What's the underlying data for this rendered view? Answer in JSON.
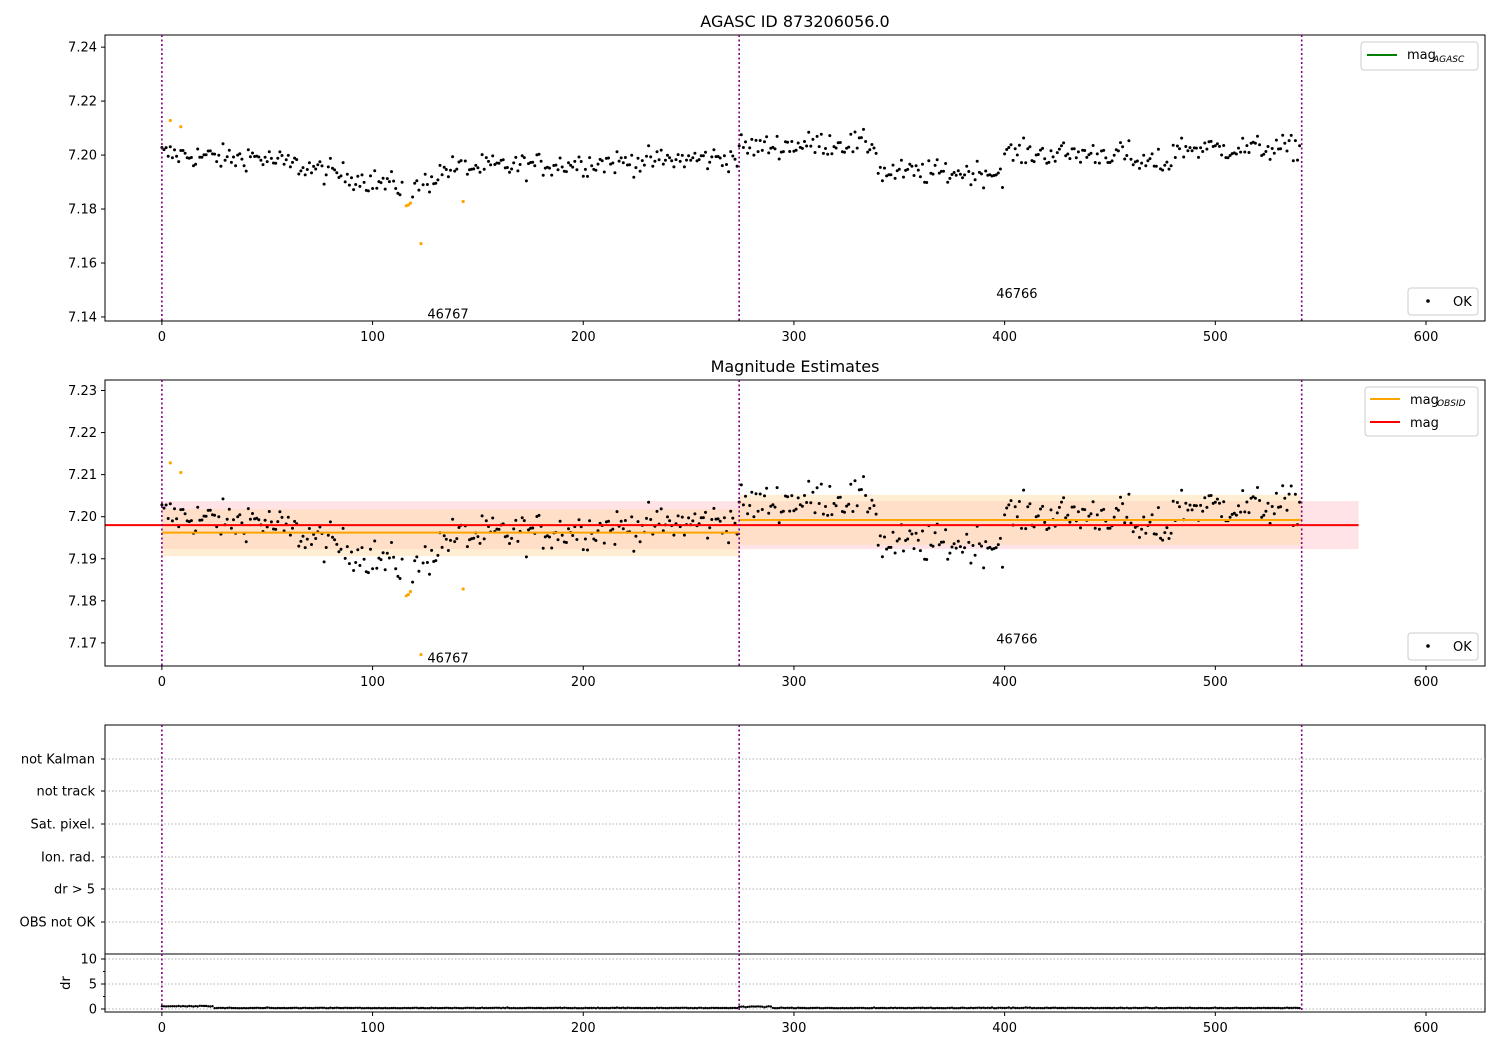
{
  "chart_data": [
    {
      "type": "scatter",
      "title": "AGASC ID 873206056.0",
      "xlim": [
        -27,
        628
      ],
      "ylim": [
        7.1385,
        7.2445
      ],
      "xticks": [
        0,
        100,
        200,
        300,
        400,
        500,
        600
      ],
      "yticks": [
        7.14,
        7.16,
        7.18,
        7.2,
        7.22,
        7.24
      ],
      "vlines": [
        0,
        274,
        541
      ],
      "legend_upper": {
        "position": "top-right",
        "entries": [
          {
            "label": "mag",
            "sub": "AGASC",
            "color": "#008000"
          }
        ]
      },
      "legend_lower": {
        "position": "bottom-right",
        "entries": [
          {
            "label": "OK",
            "marker": "dot"
          }
        ]
      },
      "annotations": [
        {
          "text": "46767",
          "x": 126,
          "y": 7.141
        },
        {
          "text": "46766",
          "x": 396,
          "y": 7.1485
        }
      ],
      "series": [
        {
          "name": "OK",
          "color": "#000000"
        },
        {
          "color": "#FFA500"
        }
      ]
    },
    {
      "type": "scatter",
      "title": "Magnitude Estimates",
      "xlim": [
        -27,
        628
      ],
      "ylim": [
        7.1645,
        7.2325
      ],
      "xticks": [
        0,
        100,
        200,
        300,
        400,
        500,
        600
      ],
      "yticks": [
        7.17,
        7.18,
        7.19,
        7.2,
        7.21,
        7.22,
        7.23
      ],
      "vlines": [
        0,
        274,
        541
      ],
      "legend_upper": {
        "position": "top-right",
        "entries": [
          {
            "label": "mag",
            "sub": "OBSID",
            "color": "#FFA500"
          },
          {
            "label": "mag",
            "color": "#FF0000"
          }
        ]
      },
      "legend_lower": {
        "position": "bottom-right",
        "entries": [
          {
            "label": "OK",
            "marker": "dot"
          }
        ]
      },
      "annotations": [
        {
          "text": "46767",
          "x": 126,
          "y": 7.1663
        },
        {
          "text": "46766",
          "x": 396,
          "y": 7.1708
        }
      ],
      "bands": [
        {
          "x0": 0,
          "x1": 568,
          "y0": 7.1923,
          "y1": 7.2037,
          "color": "#FFC8CD",
          "opacity": 0.5
        },
        {
          "x0": 0,
          "x1": 274,
          "y0": 7.1906,
          "y1": 7.2018,
          "color": "#FFDCAA",
          "opacity": 0.5
        },
        {
          "x0": 274,
          "x1": 541,
          "y0": 7.1933,
          "y1": 7.2052,
          "color": "#FFDCAA",
          "opacity": 0.5
        }
      ],
      "lines": [
        {
          "label": "mag",
          "sub": "OBSID",
          "x0": 0,
          "x1": 274,
          "y": 7.1962,
          "color": "#FFA500"
        },
        {
          "label": "mag",
          "sub": "OBSID",
          "x0": 274,
          "x1": 541,
          "y": 7.1992,
          "color": "#FFA500"
        },
        {
          "label": "mag",
          "x0": -27,
          "x1": 568,
          "y": 7.198,
          "color": "#FF0000"
        }
      ]
    },
    {
      "type": "scatter",
      "title": "",
      "xlim": [
        -27,
        628
      ],
      "categories": [
        "not Kalman",
        "not track",
        "Sat. pixel.",
        "Ion. rad.",
        "dr > 5",
        "OBS not OK"
      ],
      "vlines": [
        0,
        274,
        541
      ]
    },
    {
      "type": "scatter",
      "title": "",
      "ylabel": "dr",
      "xlim": [
        -27,
        628
      ],
      "ylim": [
        -0.6,
        11
      ],
      "xticks": [
        0,
        100,
        200,
        300,
        400,
        500,
        600
      ],
      "yticks": [
        0,
        5,
        10
      ],
      "vlines": [
        0,
        274,
        541
      ],
      "series": [
        {
          "color": "#000000"
        }
      ]
    }
  ],
  "colors": {
    "ok_points": "#000000",
    "flagged_points": "#FFA500",
    "vline": "#800080",
    "mag_obsid": "#FFA500",
    "mag": "#FF0000",
    "mag_agasc": "#008000"
  }
}
